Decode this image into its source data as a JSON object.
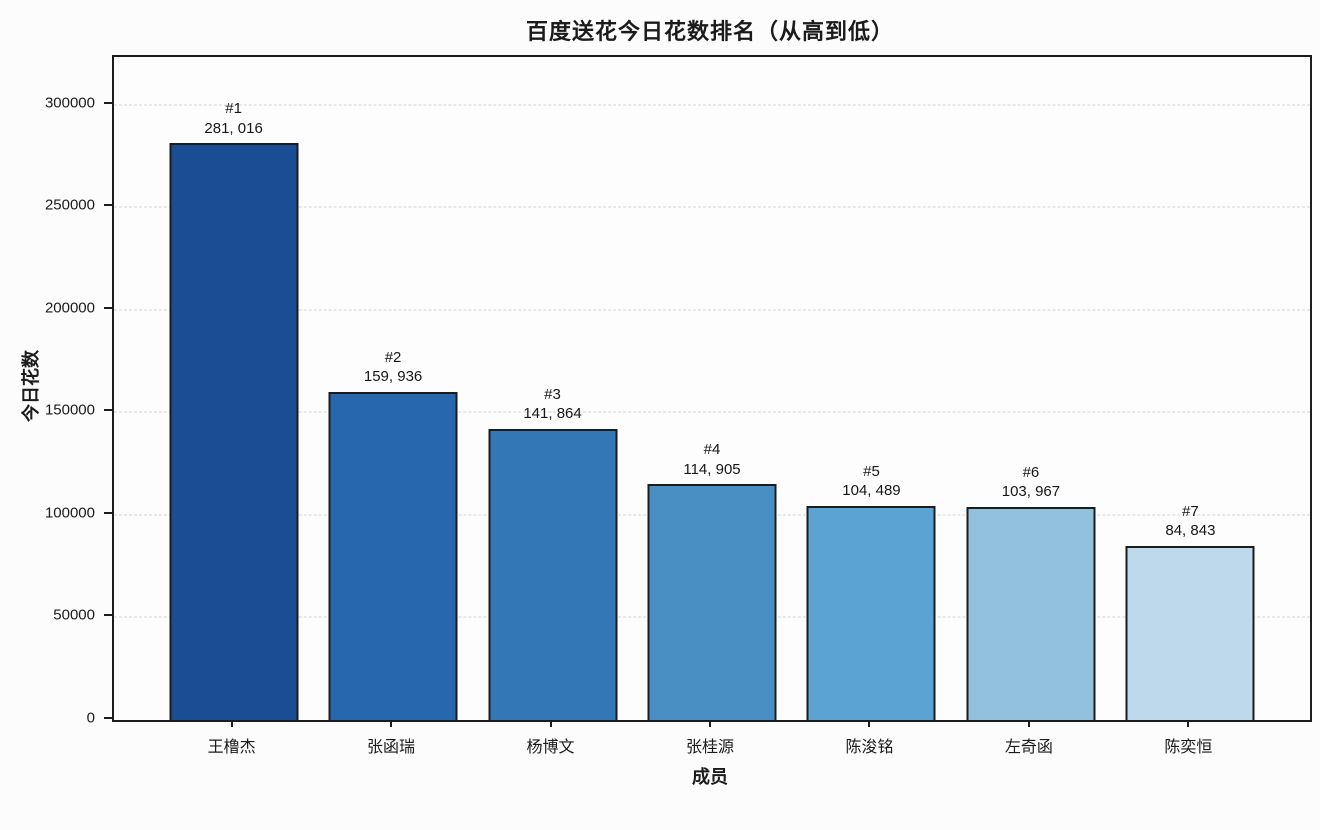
{
  "chart_data": {
    "type": "bar",
    "title": "百度送花今日花数排名（从高到低）",
    "xlabel": "成员",
    "ylabel": "今日花数",
    "categories": [
      "王橹杰",
      "张函瑞",
      "杨博文",
      "张桂源",
      "陈浚铭",
      "左奇函",
      "陈奕恒"
    ],
    "values": [
      281016,
      159936,
      141864,
      114905,
      104489,
      103967,
      84843
    ],
    "rank_labels": [
      "#1",
      "#2",
      "#3",
      "#4",
      "#5",
      "#6",
      "#7"
    ],
    "value_labels": [
      "281, 016",
      "159, 936",
      "141, 864",
      "114, 905",
      "104, 489",
      "103, 967",
      "84, 843"
    ],
    "bar_colors": [
      "#1a4e94",
      "#2667ae",
      "#3377b7",
      "#4a8fc3",
      "#5ba3d3",
      "#92c1dd",
      "#bed9ec"
    ],
    "bar_edge_color": "#1c1c1c",
    "y_ticks": [
      0,
      50000,
      100000,
      150000,
      200000,
      250000,
      300000
    ],
    "ylim": [
      0,
      323168
    ],
    "legend": "none",
    "grid": "horizontal-dashed"
  }
}
